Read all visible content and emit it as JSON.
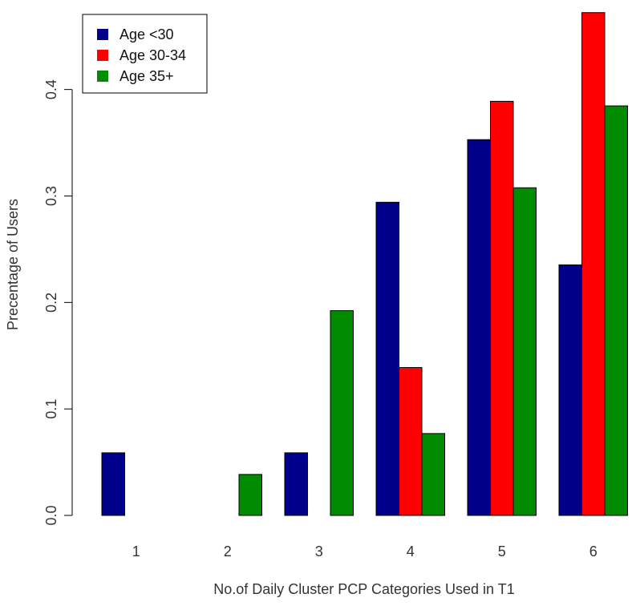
{
  "chart_data": {
    "type": "bar",
    "title": "",
    "xlabel": "No.of Daily Cluster PCP Categories Used in T1",
    "ylabel": "Precentage of Users",
    "categories": [
      "1",
      "2",
      "3",
      "4",
      "5",
      "6"
    ],
    "series": [
      {
        "name": "Age <30",
        "color": "#00008b",
        "values": [
          0.0588,
          0.0,
          0.0588,
          0.2941,
          0.3529,
          0.2353
        ]
      },
      {
        "name": "Age 30-34",
        "color": "#ff0000",
        "values": [
          0.0,
          0.0,
          0.0,
          0.1389,
          0.3889,
          0.4722
        ]
      },
      {
        "name": "Age 35+",
        "color": "#008b00",
        "values": [
          0.0,
          0.0385,
          0.1923,
          0.0769,
          0.3077,
          0.3846
        ]
      }
    ],
    "yticks": [
      "0.0",
      "0.1",
      "0.2",
      "0.3",
      "0.4"
    ],
    "ylim": [
      0,
      0.472
    ],
    "legend_position": "top-left",
    "grid": false
  }
}
